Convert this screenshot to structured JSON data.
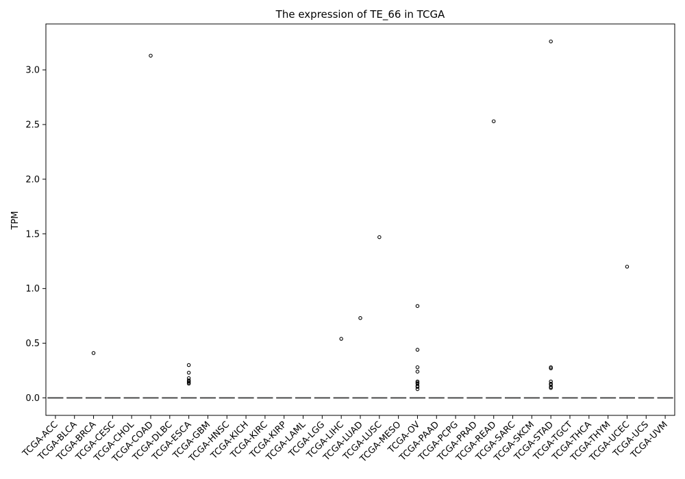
{
  "chart_data": {
    "type": "box",
    "title": "The expression of TE_66 in TCGA",
    "xlabel": "",
    "ylabel": "TPM",
    "ylim": [
      -0.16,
      3.42
    ],
    "yticks": [
      0.0,
      0.5,
      1.0,
      1.5,
      2.0,
      2.5,
      3.0
    ],
    "ytick_labels": [
      "0.0",
      "0.5",
      "1.0",
      "1.5",
      "2.0",
      "2.5",
      "3.0"
    ],
    "grid": false,
    "legend": "none",
    "colors": {
      "box": "#1f77b4",
      "median": "#4d4d4d",
      "outlier": "#000000"
    },
    "categories": [
      "TCGA-ACC",
      "TCGA-BLCA",
      "TCGA-BRCA",
      "TCGA-CESC",
      "TCGA-CHOL",
      "TCGA-COAD",
      "TCGA-DLBC",
      "TCGA-ESCA",
      "TCGA-GBM",
      "TCGA-HNSC",
      "TCGA-KICH",
      "TCGA-KIRC",
      "TCGA-KIRP",
      "TCGA-LAML",
      "TCGA-LGG",
      "TCGA-LIHC",
      "TCGA-LUAD",
      "TCGA-LUSC",
      "TCGA-MESO",
      "TCGA-OV",
      "TCGA-PAAD",
      "TCGA-PCPG",
      "TCGA-PRAD",
      "TCGA-READ",
      "TCGA-SARC",
      "TCGA-SKCM",
      "TCGA-STAD",
      "TCGA-TGCT",
      "TCGA-THCA",
      "TCGA-THYM",
      "TCGA-UCEC",
      "TCGA-UCS",
      "TCGA-UVM"
    ],
    "boxes": {
      "q1": 0,
      "median": 0,
      "q3": 0,
      "whisker_low": 0,
      "whisker_high": 0
    },
    "outliers": [
      {
        "category": "TCGA-BRCA",
        "values": [
          0.41
        ]
      },
      {
        "category": "TCGA-COAD",
        "values": [
          3.13
        ]
      },
      {
        "category": "TCGA-ESCA",
        "values": [
          0.3,
          0.23,
          0.18,
          0.16,
          0.15,
          0.14,
          0.13
        ]
      },
      {
        "category": "TCGA-LIHC",
        "values": [
          0.54
        ]
      },
      {
        "category": "TCGA-LUAD",
        "values": [
          0.73
        ]
      },
      {
        "category": "TCGA-LUSC",
        "values": [
          1.47
        ]
      },
      {
        "category": "TCGA-OV",
        "values": [
          0.84,
          0.44,
          0.28,
          0.24,
          0.15,
          0.14,
          0.13,
          0.11,
          0.1,
          0.08
        ]
      },
      {
        "category": "TCGA-READ",
        "values": [
          2.53
        ]
      },
      {
        "category": "TCGA-STAD",
        "values": [
          3.26,
          0.28,
          0.27,
          0.15,
          0.13,
          0.12,
          0.1,
          0.09
        ]
      },
      {
        "category": "TCGA-UCEC",
        "values": [
          1.2
        ]
      }
    ]
  }
}
